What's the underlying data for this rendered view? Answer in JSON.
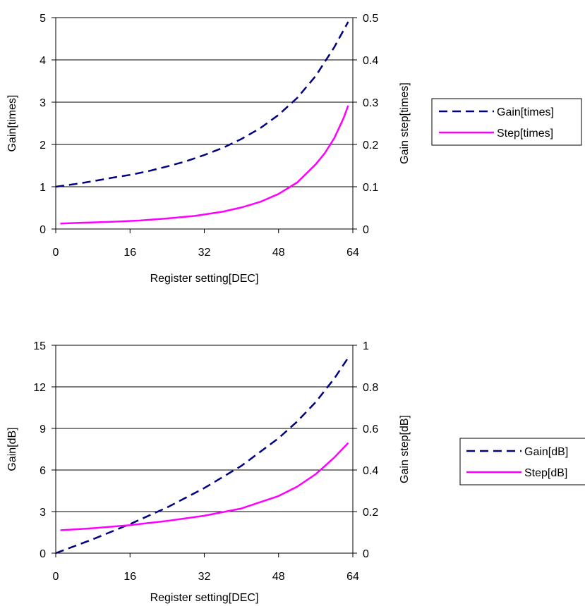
{
  "chart_data": [
    {
      "type": "line",
      "xlabel": "Register setting[DEC]",
      "ylabel": "Gain[times]",
      "y2label": "Gain step[times]",
      "xlim": [
        0,
        64
      ],
      "ylim": [
        0,
        5
      ],
      "y2lim": [
        0,
        0.5
      ],
      "x_ticks": [
        "0",
        "16",
        "32",
        "48",
        "64"
      ],
      "y_ticks": [
        "0",
        "1",
        "2",
        "3",
        "4",
        "5"
      ],
      "y2_ticks": [
        "0",
        "0.1",
        "0.2",
        "0.3",
        "0.4",
        "0.5"
      ],
      "grid": "horizontal",
      "legend_position": "right",
      "series": [
        {
          "name": "Gain[times]",
          "axis": "left",
          "style": "dashed",
          "color": "#000080",
          "x": [
            0,
            4,
            8,
            12,
            16,
            20,
            24,
            28,
            32,
            36,
            40,
            44,
            48,
            52,
            56,
            60,
            63
          ],
          "values": [
            1.0,
            1.06,
            1.13,
            1.21,
            1.28,
            1.37,
            1.48,
            1.6,
            1.75,
            1.92,
            2.13,
            2.38,
            2.7,
            3.1,
            3.62,
            4.3,
            4.9
          ]
        },
        {
          "name": "Step[times]",
          "axis": "right",
          "style": "solid",
          "color": "#ff00ff",
          "x": [
            1,
            6,
            12,
            18,
            24,
            30,
            36,
            40,
            44,
            48,
            52,
            56,
            58,
            60,
            62,
            63
          ],
          "values": [
            0.013,
            0.015,
            0.017,
            0.02,
            0.025,
            0.031,
            0.041,
            0.051,
            0.064,
            0.083,
            0.11,
            0.153,
            0.18,
            0.215,
            0.262,
            0.292
          ]
        }
      ]
    },
    {
      "type": "line",
      "xlabel": "Register setting[DEC]",
      "ylabel": "Gain[dB]",
      "y2label": "Gain step[dB]",
      "xlim": [
        0,
        64
      ],
      "ylim": [
        0,
        15
      ],
      "y2lim": [
        0,
        1
      ],
      "x_ticks": [
        "0",
        "16",
        "32",
        "48",
        "64"
      ],
      "y_ticks": [
        "0",
        "3",
        "6",
        "9",
        "12",
        "15"
      ],
      "y2_ticks": [
        "0",
        "0.2",
        "0.4",
        "0.6",
        "0.8",
        "1"
      ],
      "grid": "horizontal",
      "legend_position": "right",
      "series": [
        {
          "name": "Gain[dB]",
          "axis": "left",
          "style": "dashed",
          "color": "#000080",
          "x": [
            0,
            8,
            16,
            24,
            32,
            40,
            48,
            52,
            56,
            60,
            63
          ],
          "values": [
            0,
            1.0,
            2.1,
            3.3,
            4.7,
            6.3,
            8.3,
            9.5,
            10.9,
            12.6,
            14.1
          ]
        },
        {
          "name": "Step[dB]",
          "axis": "right",
          "style": "solid",
          "color": "#ff00ff",
          "x": [
            1,
            8,
            16,
            24,
            32,
            40,
            48,
            52,
            56,
            60,
            63
          ],
          "values": [
            0.11,
            0.12,
            0.135,
            0.155,
            0.18,
            0.215,
            0.275,
            0.32,
            0.38,
            0.46,
            0.53
          ]
        }
      ]
    }
  ]
}
